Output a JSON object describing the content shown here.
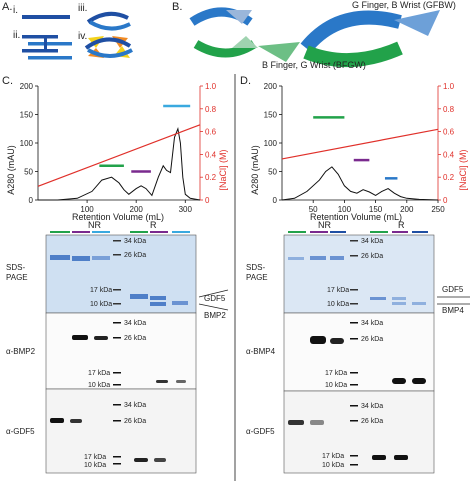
{
  "panel_a": {
    "label": "A.",
    "items": [
      "i.",
      "ii.",
      "iii.",
      "iv."
    ]
  },
  "panel_b": {
    "label": "B.",
    "gfbw": "G Finger, B Wrist (GFBW)",
    "bfgw": "B Finger, G Wrist (BFGW)"
  },
  "panel_c": {
    "label": "C.",
    "ylabel_left": "A280 (mAU)",
    "ylabel_right": "[NaCl] (M)",
    "xlabel": "Retention Volume (mL)",
    "yticks_left": [
      "0",
      "50",
      "100",
      "150",
      "200"
    ],
    "yticks_right": [
      "0",
      "0.2",
      "0.4",
      "0.6",
      "0.8",
      "1.0"
    ],
    "xticks": [
      "100",
      "200",
      "300"
    ],
    "gel_labels": {
      "nr": "NR",
      "r": "R",
      "sds": [
        "SDS-",
        "PAGE"
      ],
      "blot1": "α-BMP2",
      "blot2": "α-GDF5",
      "mw_sds": [
        "34 kDa",
        "26 kDa",
        "17 kDa",
        "10 kDa"
      ],
      "mw_blot": [
        "34 kDa",
        "26 kDa",
        "17 kDa",
        "10 kDa"
      ],
      "arrow_top": "GDF5",
      "arrow_bottom": "BMP2"
    }
  },
  "panel_d": {
    "label": "D.",
    "ylabel_left": "A280 (mAU)",
    "ylabel_right": "[NaCl] (M)",
    "xlabel": "Retention Volume (mL)",
    "yticks_left": [
      "0",
      "50",
      "100",
      "150",
      "200"
    ],
    "yticks_right": [
      "0",
      "0.2",
      "0.4",
      "0.6",
      "0.8",
      "1.0"
    ],
    "xticks": [
      "50",
      "100",
      "150",
      "200",
      "250"
    ],
    "gel_labels": {
      "nr": "NR",
      "r": "R",
      "sds": [
        "SDS-",
        "PAGE"
      ],
      "blot1": "α-BMP4",
      "blot2": "α-GDF5",
      "mw_sds": [
        "34 kDa",
        "26 kDa",
        "17 kDa",
        "10 kDa"
      ],
      "mw_blot": [
        "34 kDa",
        "26 kDa",
        "17 kDa",
        "10 kDa"
      ],
      "arrow_top": "GDF5",
      "arrow_bottom": "BMP4"
    }
  },
  "colors": {
    "blue_dark": "#1f4fa3",
    "blue": "#2a78c8",
    "green": "#22a24a",
    "yellow": "#f3d21c",
    "orange": "#f08a24",
    "purple": "#7a2a8e",
    "cyan": "#3aa9df",
    "red": "#e0302a",
    "gel_bg": "#cfe0f2",
    "gel_band": "#4f7fc8"
  },
  "chart_data": [
    {
      "type": "line",
      "panel": "C",
      "x_range": [
        0,
        330
      ],
      "ylim": [
        0,
        200
      ],
      "y2lim": [
        0,
        1.0
      ],
      "series": [
        {
          "x": [
            0,
            40,
            80,
            110,
            130,
            150,
            165,
            175,
            185,
            200,
            210,
            220,
            232,
            245,
            255,
            262,
            270,
            278,
            285,
            290,
            295,
            300,
            310,
            330
          ],
          "y": [
            0,
            0,
            3,
            15,
            35,
            40,
            30,
            18,
            10,
            20,
            25,
            20,
            8,
            40,
            60,
            52,
            48,
            110,
            125,
            100,
            40,
            10,
            3,
            0
          ]
        },
        {
          "x": [
            0,
            330
          ],
          "y2": [
            0.12,
            0.66
          ]
        }
      ],
      "fraction_bars": [
        {
          "x": [
            125,
            175
          ],
          "y": 60,
          "color": "green"
        },
        {
          "x": [
            190,
            230
          ],
          "y": 50,
          "color": "purple"
        },
        {
          "x": [
            255,
            310
          ],
          "y": 165,
          "color": "cyan"
        }
      ]
    },
    {
      "type": "line",
      "panel": "D",
      "x_range": [
        0,
        250
      ],
      "ylim": [
        0,
        200
      ],
      "y2lim": [
        0,
        1.0
      ],
      "series": [
        {
          "x": [
            0,
            20,
            40,
            60,
            70,
            80,
            90,
            100,
            110,
            120,
            130,
            140,
            150,
            160,
            170,
            180,
            190,
            200,
            220,
            250
          ],
          "y": [
            0,
            3,
            15,
            35,
            50,
            58,
            45,
            25,
            15,
            12,
            18,
            14,
            8,
            15,
            20,
            12,
            6,
            3,
            1,
            0
          ]
        },
        {
          "x": [
            0,
            250
          ],
          "y2": [
            0.36,
            0.62
          ]
        }
      ],
      "fraction_bars": [
        {
          "x": [
            50,
            100
          ],
          "y": 145,
          "color": "green"
        },
        {
          "x": [
            115,
            140
          ],
          "y": 70,
          "color": "purple"
        },
        {
          "x": [
            165,
            185
          ],
          "y": 38,
          "color": "blue"
        }
      ]
    }
  ]
}
